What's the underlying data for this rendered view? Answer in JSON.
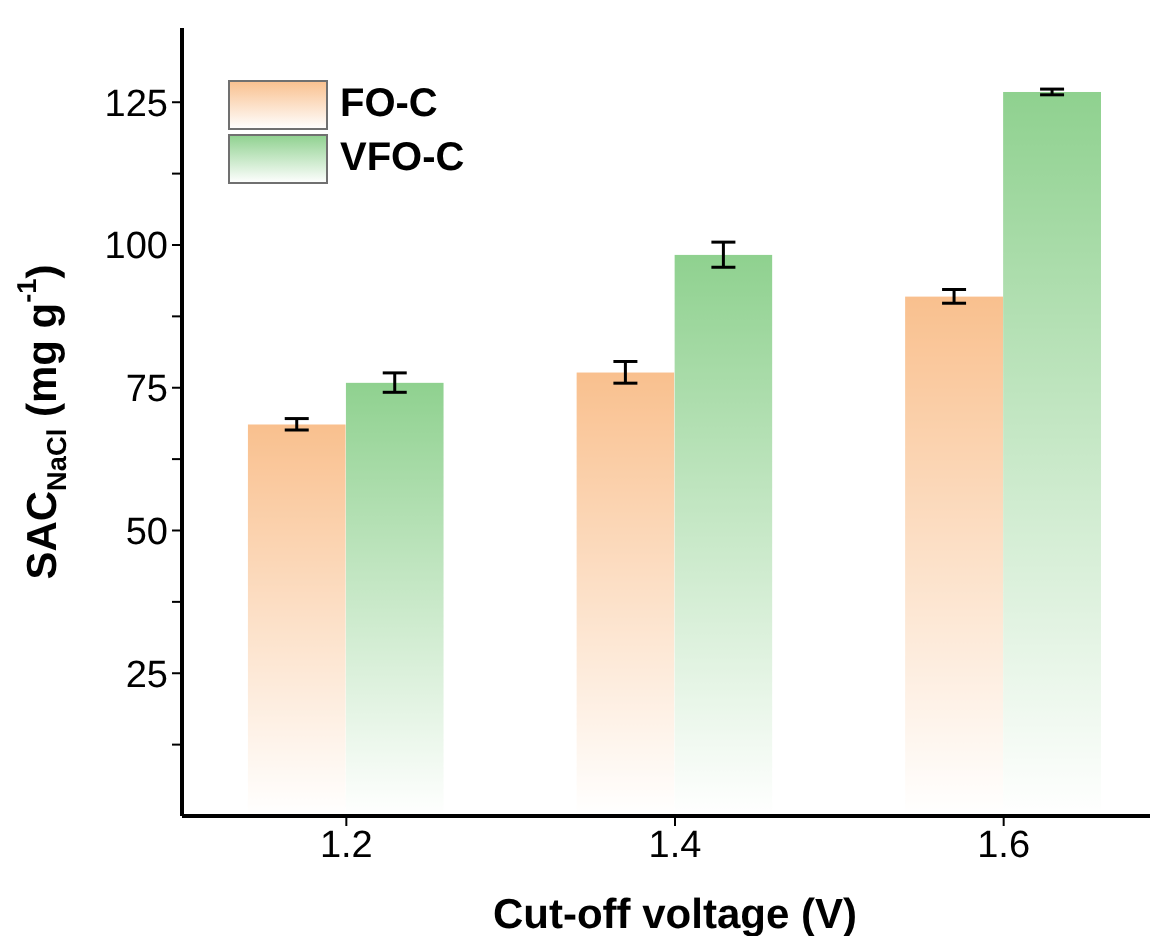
{
  "chart_data": {
    "type": "bar",
    "xlabel": "Cut-off voltage (V)",
    "ylabel": "SAC$_{NaCl}$ (mg g$^{-1}$)",
    "categories": [
      "1.2",
      "1.4",
      "1.6"
    ],
    "series": [
      {
        "name": "FO-C",
        "color": "#f9c08e",
        "values": [
          68.6,
          77.7,
          91.0
        ],
        "errors": [
          1.0,
          1.9,
          1.2
        ]
      },
      {
        "name": "VFO-C",
        "color": "#8fd18f",
        "values": [
          75.9,
          98.3,
          126.8
        ],
        "errors": [
          1.7,
          2.2,
          0.5
        ]
      }
    ],
    "ylim": [
      0,
      138
    ],
    "yticks": [
      {
        "value": 12.5,
        "label": null
      },
      25,
      {
        "value": 37.5,
        "label": null
      },
      50,
      {
        "value": 62.5,
        "label": null
      },
      75,
      {
        "value": 87.5,
        "label": null
      },
      100,
      {
        "value": 112.5,
        "label": null
      },
      125
    ],
    "grid": false,
    "legend": "top left"
  }
}
